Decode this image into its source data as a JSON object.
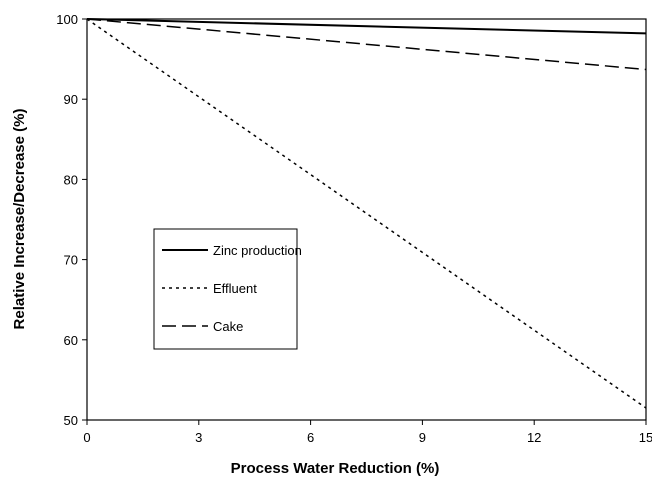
{
  "chart_data": {
    "type": "line",
    "title": "",
    "xlabel": "Process Water Reduction (%)",
    "ylabel": "Relative Increase/Decrease (%)",
    "xlim": [
      0,
      15
    ],
    "ylim": [
      50,
      100
    ],
    "xticks": [
      0,
      3,
      6,
      9,
      12,
      15
    ],
    "yticks": [
      50,
      60,
      70,
      80,
      90,
      100
    ],
    "grid": false,
    "legend_position": "center-left",
    "series": [
      {
        "name": "Zinc production",
        "style": "solid",
        "color": "#000000",
        "x": [
          0,
          15
        ],
        "y": [
          100,
          98.2
        ]
      },
      {
        "name": "Effluent",
        "style": "dotted",
        "color": "#000000",
        "x": [
          0,
          15
        ],
        "y": [
          100,
          51.5
        ]
      },
      {
        "name": "Cake",
        "style": "dashed",
        "color": "#000000",
        "x": [
          0,
          15
        ],
        "y": [
          100,
          93.7
        ]
      }
    ]
  }
}
